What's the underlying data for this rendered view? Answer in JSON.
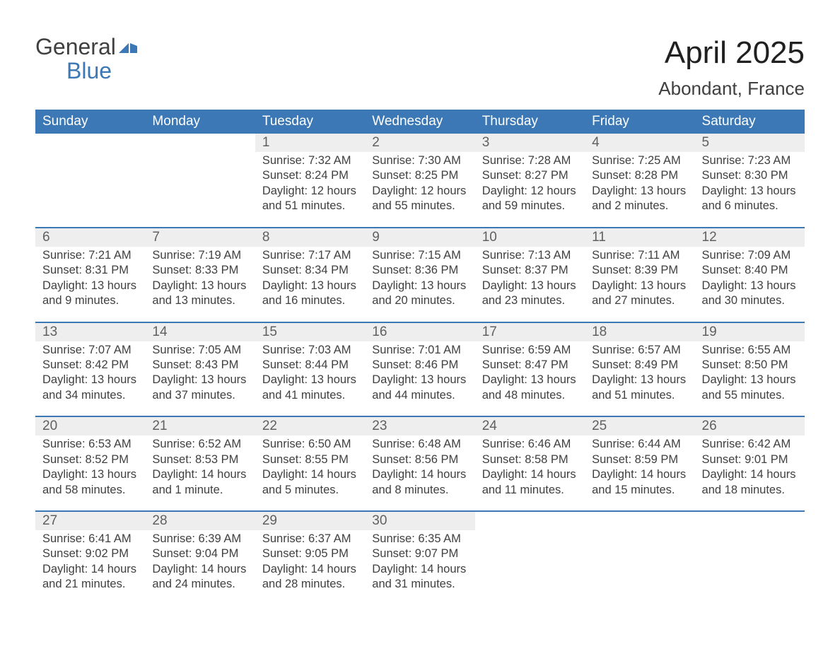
{
  "logo": {
    "text_general": "General",
    "text_blue": "Blue",
    "flag_color": "#3b78b5"
  },
  "title": "April 2025",
  "location": "Abondant, France",
  "styling": {
    "header_bg": "#3b78b5",
    "header_text": "#ffffff",
    "daynum_bg": "#eeeeee",
    "daynum_text": "#606060",
    "body_text": "#404040",
    "page_bg": "#ffffff",
    "week_divider": "#3b78b5",
    "font_family": "Arial",
    "title_fontsize": 44,
    "location_fontsize": 26,
    "header_fontsize": 19,
    "body_fontsize": 16.5
  },
  "day_headers": [
    "Sunday",
    "Monday",
    "Tuesday",
    "Wednesday",
    "Thursday",
    "Friday",
    "Saturday"
  ],
  "weeks": [
    [
      {
        "num": "",
        "lines": [
          "",
          "",
          "",
          ""
        ]
      },
      {
        "num": "",
        "lines": [
          "",
          "",
          "",
          ""
        ]
      },
      {
        "num": "1",
        "lines": [
          "Sunrise: 7:32 AM",
          "Sunset: 8:24 PM",
          "Daylight: 12 hours",
          "and 51 minutes."
        ]
      },
      {
        "num": "2",
        "lines": [
          "Sunrise: 7:30 AM",
          "Sunset: 8:25 PM",
          "Daylight: 12 hours",
          "and 55 minutes."
        ]
      },
      {
        "num": "3",
        "lines": [
          "Sunrise: 7:28 AM",
          "Sunset: 8:27 PM",
          "Daylight: 12 hours",
          "and 59 minutes."
        ]
      },
      {
        "num": "4",
        "lines": [
          "Sunrise: 7:25 AM",
          "Sunset: 8:28 PM",
          "Daylight: 13 hours",
          "and 2 minutes."
        ]
      },
      {
        "num": "5",
        "lines": [
          "Sunrise: 7:23 AM",
          "Sunset: 8:30 PM",
          "Daylight: 13 hours",
          "and 6 minutes."
        ]
      }
    ],
    [
      {
        "num": "6",
        "lines": [
          "Sunrise: 7:21 AM",
          "Sunset: 8:31 PM",
          "Daylight: 13 hours",
          "and 9 minutes."
        ]
      },
      {
        "num": "7",
        "lines": [
          "Sunrise: 7:19 AM",
          "Sunset: 8:33 PM",
          "Daylight: 13 hours",
          "and 13 minutes."
        ]
      },
      {
        "num": "8",
        "lines": [
          "Sunrise: 7:17 AM",
          "Sunset: 8:34 PM",
          "Daylight: 13 hours",
          "and 16 minutes."
        ]
      },
      {
        "num": "9",
        "lines": [
          "Sunrise: 7:15 AM",
          "Sunset: 8:36 PM",
          "Daylight: 13 hours",
          "and 20 minutes."
        ]
      },
      {
        "num": "10",
        "lines": [
          "Sunrise: 7:13 AM",
          "Sunset: 8:37 PM",
          "Daylight: 13 hours",
          "and 23 minutes."
        ]
      },
      {
        "num": "11",
        "lines": [
          "Sunrise: 7:11 AM",
          "Sunset: 8:39 PM",
          "Daylight: 13 hours",
          "and 27 minutes."
        ]
      },
      {
        "num": "12",
        "lines": [
          "Sunrise: 7:09 AM",
          "Sunset: 8:40 PM",
          "Daylight: 13 hours",
          "and 30 minutes."
        ]
      }
    ],
    [
      {
        "num": "13",
        "lines": [
          "Sunrise: 7:07 AM",
          "Sunset: 8:42 PM",
          "Daylight: 13 hours",
          "and 34 minutes."
        ]
      },
      {
        "num": "14",
        "lines": [
          "Sunrise: 7:05 AM",
          "Sunset: 8:43 PM",
          "Daylight: 13 hours",
          "and 37 minutes."
        ]
      },
      {
        "num": "15",
        "lines": [
          "Sunrise: 7:03 AM",
          "Sunset: 8:44 PM",
          "Daylight: 13 hours",
          "and 41 minutes."
        ]
      },
      {
        "num": "16",
        "lines": [
          "Sunrise: 7:01 AM",
          "Sunset: 8:46 PM",
          "Daylight: 13 hours",
          "and 44 minutes."
        ]
      },
      {
        "num": "17",
        "lines": [
          "Sunrise: 6:59 AM",
          "Sunset: 8:47 PM",
          "Daylight: 13 hours",
          "and 48 minutes."
        ]
      },
      {
        "num": "18",
        "lines": [
          "Sunrise: 6:57 AM",
          "Sunset: 8:49 PM",
          "Daylight: 13 hours",
          "and 51 minutes."
        ]
      },
      {
        "num": "19",
        "lines": [
          "Sunrise: 6:55 AM",
          "Sunset: 8:50 PM",
          "Daylight: 13 hours",
          "and 55 minutes."
        ]
      }
    ],
    [
      {
        "num": "20",
        "lines": [
          "Sunrise: 6:53 AM",
          "Sunset: 8:52 PM",
          "Daylight: 13 hours",
          "and 58 minutes."
        ]
      },
      {
        "num": "21",
        "lines": [
          "Sunrise: 6:52 AM",
          "Sunset: 8:53 PM",
          "Daylight: 14 hours",
          "and 1 minute."
        ]
      },
      {
        "num": "22",
        "lines": [
          "Sunrise: 6:50 AM",
          "Sunset: 8:55 PM",
          "Daylight: 14 hours",
          "and 5 minutes."
        ]
      },
      {
        "num": "23",
        "lines": [
          "Sunrise: 6:48 AM",
          "Sunset: 8:56 PM",
          "Daylight: 14 hours",
          "and 8 minutes."
        ]
      },
      {
        "num": "24",
        "lines": [
          "Sunrise: 6:46 AM",
          "Sunset: 8:58 PM",
          "Daylight: 14 hours",
          "and 11 minutes."
        ]
      },
      {
        "num": "25",
        "lines": [
          "Sunrise: 6:44 AM",
          "Sunset: 8:59 PM",
          "Daylight: 14 hours",
          "and 15 minutes."
        ]
      },
      {
        "num": "26",
        "lines": [
          "Sunrise: 6:42 AM",
          "Sunset: 9:01 PM",
          "Daylight: 14 hours",
          "and 18 minutes."
        ]
      }
    ],
    [
      {
        "num": "27",
        "lines": [
          "Sunrise: 6:41 AM",
          "Sunset: 9:02 PM",
          "Daylight: 14 hours",
          "and 21 minutes."
        ]
      },
      {
        "num": "28",
        "lines": [
          "Sunrise: 6:39 AM",
          "Sunset: 9:04 PM",
          "Daylight: 14 hours",
          "and 24 minutes."
        ]
      },
      {
        "num": "29",
        "lines": [
          "Sunrise: 6:37 AM",
          "Sunset: 9:05 PM",
          "Daylight: 14 hours",
          "and 28 minutes."
        ]
      },
      {
        "num": "30",
        "lines": [
          "Sunrise: 6:35 AM",
          "Sunset: 9:07 PM",
          "Daylight: 14 hours",
          "and 31 minutes."
        ]
      },
      {
        "num": "",
        "lines": [
          "",
          "",
          "",
          ""
        ]
      },
      {
        "num": "",
        "lines": [
          "",
          "",
          "",
          ""
        ]
      },
      {
        "num": "",
        "lines": [
          "",
          "",
          "",
          ""
        ]
      }
    ]
  ]
}
